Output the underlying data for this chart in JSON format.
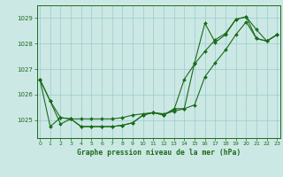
{
  "title": "Graphe pression niveau de la mer (hPa)",
  "background_color": "#cce8e4",
  "grid_color": "#99cccc",
  "line_color": "#1a6b1a",
  "x_ticks": [
    0,
    1,
    2,
    3,
    4,
    5,
    6,
    7,
    8,
    9,
    10,
    11,
    12,
    13,
    14,
    15,
    16,
    17,
    18,
    19,
    20,
    21,
    22,
    23
  ],
  "y_ticks": [
    1025,
    1026,
    1027,
    1028,
    1029
  ],
  "ylim": [
    1024.3,
    1029.5
  ],
  "xlim": [
    -0.3,
    23.3
  ],
  "series1": [
    1026.6,
    1025.75,
    1024.85,
    1025.05,
    1024.75,
    1024.75,
    1024.75,
    1024.75,
    1024.8,
    1024.9,
    1025.2,
    1025.3,
    1025.2,
    1025.4,
    1026.6,
    1027.2,
    1027.7,
    1028.15,
    1028.4,
    1028.95,
    1029.05,
    1028.55,
    1028.1,
    1028.35
  ],
  "series2": [
    1026.6,
    1024.75,
    1025.1,
    1025.05,
    1024.75,
    1024.75,
    1024.75,
    1024.75,
    1024.8,
    1024.9,
    1025.2,
    1025.3,
    1025.2,
    1025.45,
    1025.45,
    1027.25,
    1028.8,
    1028.05,
    1028.35,
    1028.95,
    1029.05,
    1028.2,
    1028.1,
    1028.35
  ],
  "series3": [
    1026.6,
    1025.75,
    1025.1,
    1025.05,
    1025.05,
    1025.05,
    1025.05,
    1025.05,
    1025.1,
    1025.2,
    1025.25,
    1025.3,
    1025.25,
    1025.35,
    1025.45,
    1025.6,
    1026.7,
    1027.25,
    1027.75,
    1028.35,
    1028.85,
    1028.2,
    1028.1,
    1028.35
  ]
}
